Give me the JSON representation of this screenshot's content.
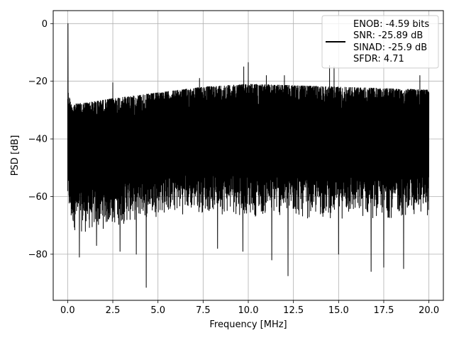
{
  "chart_data": {
    "type": "line",
    "title": "",
    "xlabel": "Frequency [MHz]",
    "ylabel": "PSD [dB]",
    "xlim": [
      -0.8,
      20.8
    ],
    "ylim": [
      -96,
      4.5
    ],
    "xticks": [
      0.0,
      2.5,
      5.0,
      7.5,
      10.0,
      12.5,
      15.0,
      17.5,
      20.0
    ],
    "xtick_labels": [
      "0.0",
      "2.5",
      "5.0",
      "7.5",
      "10.0",
      "12.5",
      "15.0",
      "17.5",
      "20.0"
    ],
    "yticks": [
      0,
      -20,
      -40,
      -60,
      -80
    ],
    "ytick_labels": [
      "0",
      "−20",
      "−40",
      "−60",
      "−80"
    ],
    "grid": true,
    "line_color": "#000000",
    "legend": {
      "placement": "upper-right",
      "entries": [
        "ENOB: -4.59 bits",
        "SNR: -25.89 dB",
        "SINAD: -25.9 dB",
        "SFDR: 4.71"
      ]
    },
    "series": [
      {
        "envelope_top": [
          [
            0.0,
            -23
          ],
          [
            0.2,
            -28
          ],
          [
            1.0,
            -27.5
          ],
          [
            2.5,
            -26
          ],
          [
            5.0,
            -24
          ],
          [
            7.5,
            -22
          ],
          [
            10.0,
            -21
          ],
          [
            12.5,
            -21.5
          ],
          [
            15.0,
            -22
          ],
          [
            17.5,
            -22.5
          ],
          [
            20.0,
            -23
          ]
        ],
        "envelope_bottom": [
          [
            0.0,
            -65
          ],
          [
            0.2,
            -72
          ],
          [
            1.0,
            -73
          ],
          [
            2.5,
            -71
          ],
          [
            5.0,
            -67
          ],
          [
            7.5,
            -66
          ],
          [
            10.0,
            -67
          ],
          [
            12.5,
            -68
          ],
          [
            15.0,
            -68
          ],
          [
            17.5,
            -68
          ],
          [
            20.0,
            -67
          ]
        ],
        "peaks": [
          [
            0.02,
            0.0
          ],
          [
            2.5,
            -20.5
          ],
          [
            7.3,
            -19
          ],
          [
            9.75,
            -15
          ],
          [
            10.0,
            -13.5
          ],
          [
            11.0,
            -18
          ],
          [
            12.0,
            -18
          ],
          [
            14.5,
            -14.5
          ],
          [
            14.75,
            -15
          ],
          [
            17.5,
            -19
          ],
          [
            19.5,
            -18
          ]
        ],
        "dips": [
          [
            0.65,
            -81
          ],
          [
            1.6,
            -77
          ],
          [
            2.9,
            -79
          ],
          [
            3.8,
            -80
          ],
          [
            4.35,
            -91.5
          ],
          [
            8.3,
            -78
          ],
          [
            9.7,
            -79
          ],
          [
            11.3,
            -82
          ],
          [
            12.2,
            -87.5
          ],
          [
            15.0,
            -80
          ],
          [
            16.8,
            -86
          ],
          [
            17.5,
            -84.5
          ],
          [
            18.6,
            -85
          ]
        ]
      }
    ]
  }
}
